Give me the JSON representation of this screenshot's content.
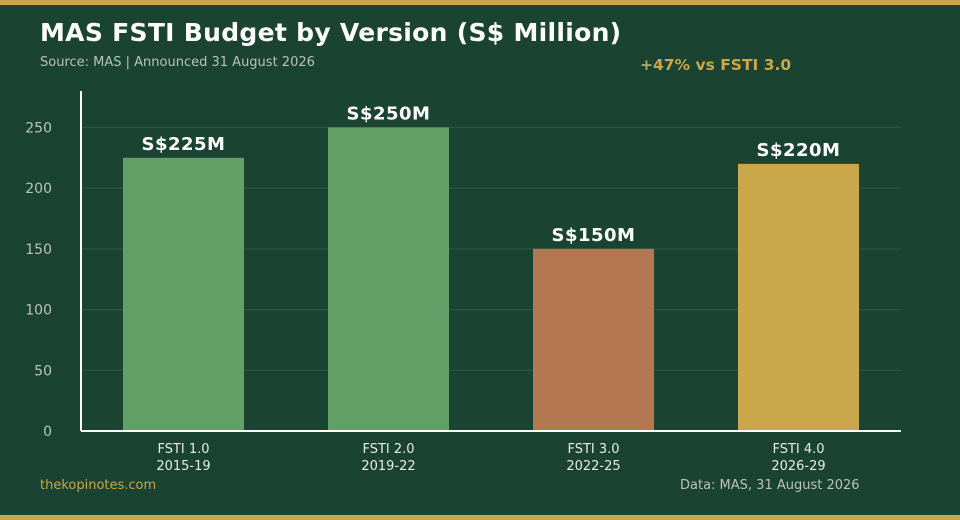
{
  "header": {
    "title": "MAS FSTI Budget by Version (S$ Million)",
    "subtitle": "Source: MAS  |  Announced 31 August 2026",
    "callout": "+47% vs FSTI 3.0"
  },
  "footer": {
    "left": "thekopinotes.com",
    "right": "Data: MAS, 31 August 2026"
  },
  "colors": {
    "background": "#1b4332",
    "accent": "#c9a74a",
    "bar_green": "#63a068",
    "bar_orange": "#b47850",
    "bar_gold": "#c9a74a",
    "grid": "#2f5a46"
  },
  "chart_data": {
    "type": "bar",
    "categories": [
      [
        "FSTI 1.0",
        "2015-19"
      ],
      [
        "FSTI 2.0",
        "2019-22"
      ],
      [
        "FSTI 3.0",
        "2022-25"
      ],
      [
        "FSTI 4.0",
        "2026-29"
      ]
    ],
    "values": [
      225,
      250,
      150,
      220
    ],
    "data_labels": [
      "S$225M",
      "S$250M",
      "S$150M",
      "S$220M"
    ],
    "bar_colors": [
      "#63a068",
      "#63a068",
      "#b47850",
      "#c9a74a"
    ],
    "yticks": [
      0,
      50,
      100,
      150,
      200,
      250
    ],
    "ylim": [
      0,
      280
    ],
    "grid": true,
    "title": "MAS FSTI Budget by Version (S$ Million)",
    "xlabel": "",
    "ylabel": ""
  }
}
